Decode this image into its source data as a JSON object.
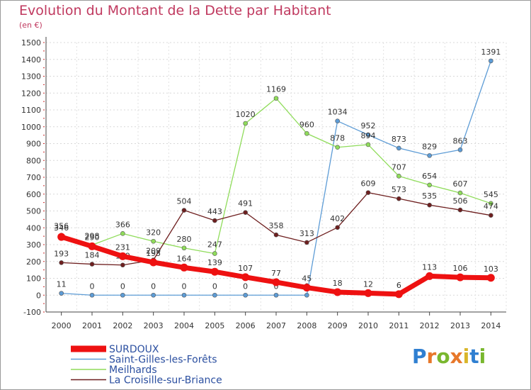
{
  "header": {
    "title": "Evolution du Montant de la Dette par Habitant",
    "unit": "(en €)"
  },
  "logo": {
    "text": "Proxiti",
    "letter_colors": [
      "#2f7fd1",
      "#e7772a",
      "#79b72e",
      "#e7772a",
      "#d9b62a",
      "#2f7fd1",
      "#79b72e"
    ]
  },
  "chart_data": {
    "type": "line",
    "title": "Evolution du Montant de la Dette par Habitant",
    "subtitle": "(en €)",
    "xlabel": "",
    "ylabel": "",
    "x": [
      "2000",
      "2001",
      "2002",
      "2003",
      "2004",
      "2005",
      "2006",
      "2007",
      "2008",
      "2009",
      "2010",
      "2011",
      "2012",
      "2013",
      "2014"
    ],
    "ylim": [
      -100,
      1500
    ],
    "yticks": [
      -100,
      0,
      100,
      200,
      300,
      400,
      500,
      600,
      700,
      800,
      900,
      1000,
      1100,
      1200,
      1300,
      1400,
      1500
    ],
    "grid": true,
    "legend_position": "bottom-left",
    "series": [
      {
        "name": "SURDOUX",
        "color": "#ee1111",
        "weight": "bold",
        "values": [
          346,
          290,
          231,
          195,
          164,
          139,
          107,
          77,
          45,
          18,
          12,
          6,
          113,
          106,
          103
        ]
      },
      {
        "name": "Saint-Gilles-les-Forêts",
        "color": "#5d9cd6",
        "weight": "thin",
        "values": [
          11,
          0,
          0,
          0,
          0,
          0,
          0,
          0,
          0,
          1034,
          952,
          873,
          829,
          863,
          1391
        ]
      },
      {
        "name": "Meilhards",
        "color": "#8fdc5a",
        "weight": "thin",
        "values": [
          356,
          298,
          366,
          320,
          280,
          247,
          1020,
          1169,
          960,
          878,
          894,
          707,
          654,
          607,
          545
        ]
      },
      {
        "name": "La Croisille-sur-Briance",
        "color": "#6e1f1f",
        "weight": "thin",
        "values": [
          193,
          184,
          179,
          209,
          504,
          443,
          491,
          358,
          313,
          402,
          609,
          573,
          535,
          506,
          474
        ]
      }
    ]
  }
}
